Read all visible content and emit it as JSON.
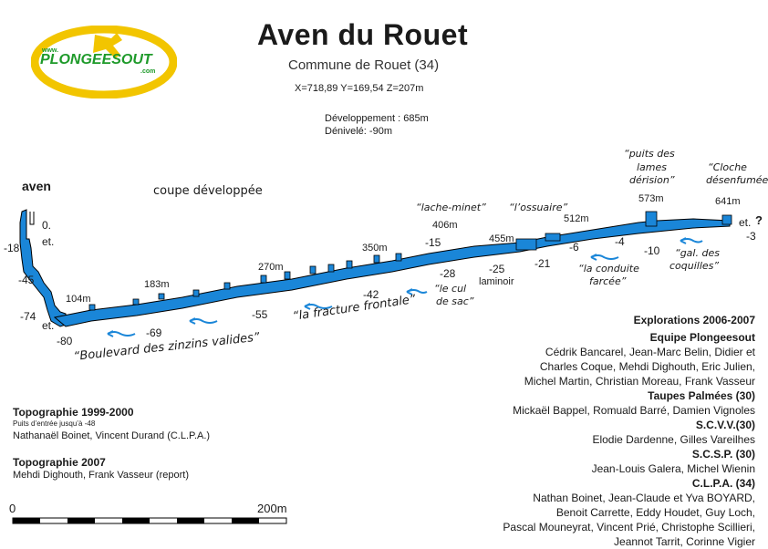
{
  "header": {
    "title": "Aven du Rouet",
    "subtitle": "Commune de Rouet (34)",
    "coords": "X=718,89   Y=169,54   Z=207m",
    "development": "Développement : 685m",
    "depth_total": "Dénivelé: -90m"
  },
  "logo": {
    "text": "PLONGEESOUT",
    "prefix": "www.",
    "suffix": ".com",
    "colors": {
      "yellow": "#f2c500",
      "green": "#1e9a2a"
    }
  },
  "diagram": {
    "section_label": "coupe développée",
    "entrance_label": "aven",
    "colors": {
      "water": "#1a86d8",
      "outline": "#000000",
      "arrow": "#1a86d8"
    }
  },
  "depths": [
    "0.",
    "et.",
    "-18",
    "-45",
    "-74",
    "et.",
    "-80",
    "-69",
    "-55",
    "-42",
    "-28",
    "-25",
    "-21",
    "-15",
    "-6",
    "-4",
    "-10",
    "-3",
    "et."
  ],
  "distances": [
    "104m",
    "183m",
    "270m",
    "350m",
    "406m",
    "455m",
    "512m",
    "573m",
    "641m"
  ],
  "question_mark": "?",
  "names": {
    "lache_minet": "“lache-minet”",
    "ossuaire": "“l’ossuaire”",
    "puits_line1": "“puits des",
    "puits_line2": "lames",
    "puits_line3": "dérision”",
    "cloche_line1": "“Cloche",
    "cloche_line2": "désenfumée”",
    "cul_line1": "“le cul",
    "cul_line2": "de sac”",
    "laminoir": "laminoir",
    "conduite_line1": "“la conduite",
    "conduite_line2": "farcée”",
    "gal_line1": "“gal. des",
    "gal_line2": "coquilles”",
    "fracture": "“la fracture frontale”",
    "boulevard": "“Boulevard des zinzins valides”"
  },
  "topo": {
    "title1": "Topographie 1999-2000",
    "note1": "Puits d’entrée jusqu’à -48",
    "authors1": "Nathanaël Boinet, Vincent Durand (C.L.P.A.)",
    "title2": "Topographie 2007",
    "authors2": "Mehdi Dighouth, Frank Vasseur (report)"
  },
  "scale": {
    "start": "0",
    "end": "200m"
  },
  "explorations": {
    "title": "Explorations 2006-2007",
    "groups": [
      {
        "name": "Equipe Plongeesout",
        "lines": [
          "Cédrik Bancarel, Jean-Marc Belin, Didier et",
          "Charles Coque, Mehdi Dighouth, Eric Julien,",
          "Michel Martin, Christian Moreau, Frank Vasseur"
        ]
      },
      {
        "name": "Taupes Palmées (30)",
        "lines": [
          "Mickaël Bappel, Romuald Barré, Damien Vignoles"
        ]
      },
      {
        "name": "S.C.V.V.(30)",
        "lines": [
          "Elodie Dardenne, Gilles Vareilhes"
        ]
      },
      {
        "name": "S.C.S.P. (30)",
        "lines": [
          "Jean-Louis Galera, Michel Wienin"
        ]
      },
      {
        "name": "C.L.P.A. (34)",
        "lines": [
          "Nathan Boinet, Jean-Claude et Yva BOYARD,",
          "Benoit Carrette, Eddy Houdet, Guy Loch,",
          "Pascal Mouneyrat, Vincent Prié, Christophe Scillieri,",
          "Jeannot Tarrit, Corinne Vigier"
        ]
      }
    ]
  }
}
